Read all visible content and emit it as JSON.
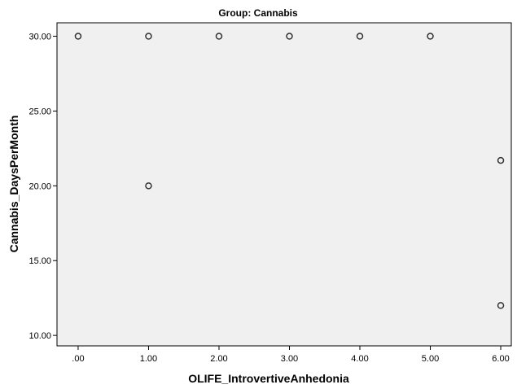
{
  "chart_data": {
    "type": "scatter",
    "title": "Group: Cannabis",
    "xlabel": "OLIFE_IntrovertiveAnhedonia",
    "ylabel": "Cannabis_DaysPerMonth",
    "xlim": [
      -0.3,
      6.15
    ],
    "ylim": [
      9.3,
      30.9
    ],
    "x_ticks": [
      0,
      1,
      2,
      3,
      4,
      5,
      6
    ],
    "x_tick_labels": [
      ".00",
      "1.00",
      "2.00",
      "3.00",
      "4.00",
      "5.00",
      "6.00"
    ],
    "y_ticks": [
      10,
      15,
      20,
      25,
      30
    ],
    "y_tick_labels": [
      "10.00",
      "15.00",
      "20.00",
      "25.00",
      "30.00"
    ],
    "grid": false,
    "legend": "none",
    "marker_style": "open-circle",
    "colors": {
      "background": "#f0f0f0",
      "marker": "#333333"
    },
    "points": [
      {
        "x": 0,
        "y": 30
      },
      {
        "x": 1,
        "y": 30
      },
      {
        "x": 2,
        "y": 30
      },
      {
        "x": 3,
        "y": 30
      },
      {
        "x": 4,
        "y": 30
      },
      {
        "x": 5,
        "y": 30
      },
      {
        "x": 1,
        "y": 20
      },
      {
        "x": 6,
        "y": 21.7
      },
      {
        "x": 6,
        "y": 12
      }
    ]
  }
}
